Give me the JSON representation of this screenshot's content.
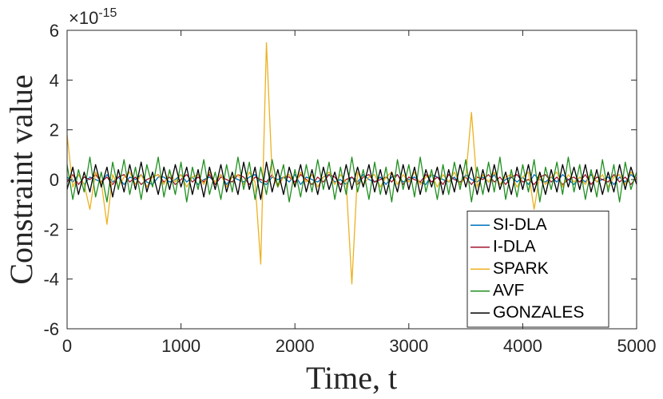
{
  "chart_data": {
    "type": "line",
    "y_multiplier": {
      "base": "×10",
      "exponent": "-15"
    },
    "xlabel": "Time, t",
    "ylabel": "Constraint value",
    "xlim": [
      0,
      5000
    ],
    "ylim": [
      -6,
      6
    ],
    "xticks": [
      0,
      1000,
      2000,
      3000,
      4000,
      5000
    ],
    "yticks": [
      -6,
      -4,
      -2,
      0,
      2,
      4,
      6
    ],
    "legend": "lower right",
    "x": [
      0,
      50,
      100,
      150,
      200,
      250,
      300,
      350,
      400,
      450,
      500,
      550,
      600,
      650,
      700,
      750,
      800,
      850,
      900,
      950,
      1000,
      1050,
      1100,
      1150,
      1200,
      1250,
      1300,
      1350,
      1400,
      1450,
      1500,
      1550,
      1600,
      1650,
      1700,
      1750,
      1800,
      1850,
      1900,
      1950,
      2000,
      2050,
      2100,
      2150,
      2200,
      2250,
      2300,
      2350,
      2400,
      2450,
      2500,
      2550,
      2600,
      2650,
      2700,
      2750,
      2800,
      2850,
      2900,
      2950,
      3000,
      3050,
      3100,
      3150,
      3200,
      3250,
      3300,
      3350,
      3400,
      3450,
      3500,
      3550,
      3600,
      3650,
      3700,
      3750,
      3800,
      3850,
      3900,
      3950,
      4000,
      4050,
      4100,
      4150,
      4200,
      4250,
      4300,
      4350,
      4400,
      4450,
      4500,
      4550,
      4600,
      4650,
      4700,
      4750,
      4800,
      4850,
      4900,
      4950,
      5000
    ],
    "series": [
      {
        "name": "SI-DLA",
        "color": "#0072bd",
        "values": [
          0.1,
          -0.1,
          0.2,
          -0.2,
          0.1,
          0,
          -0.1,
          0.2,
          -0.1,
          0.1,
          -0.2,
          0.1,
          0,
          0.2,
          -0.1,
          -0.2,
          0.1,
          0.1,
          -0.1,
          0,
          0.2,
          -0.1,
          0.1,
          -0.2,
          0,
          0.1,
          -0.1,
          0.2,
          -0.2,
          0.1,
          0,
          -0.1,
          0.1,
          0.2,
          -0.1,
          -0.2,
          0.1,
          0,
          0.1,
          -0.1,
          0.2,
          -0.2,
          0.1,
          0,
          -0.1,
          0.1,
          0.2,
          -0.1,
          0,
          -0.2,
          0.1,
          -0.1,
          0.2,
          0,
          -0.1,
          0.1,
          -0.2,
          0.1,
          0.2,
          -0.1,
          0,
          0.1,
          -0.1,
          -0.2,
          0.2,
          0.1,
          0,
          -0.1,
          0.1,
          -0.2,
          0.2,
          0,
          -0.1,
          0.1,
          -0.1,
          0.2,
          -0.2,
          0,
          0.1,
          -0.1,
          0.1,
          -0.2,
          0.2,
          0,
          -0.1,
          0.1,
          -0.1,
          0.2,
          0,
          -0.2,
          0.1,
          -0.1,
          0.2,
          -0.1,
          0,
          0.1,
          -0.2,
          0.1,
          -0.1,
          0.2,
          0
        ]
      },
      {
        "name": "I-DLA",
        "color": "#a2142f",
        "values": [
          -0.1,
          0.2,
          -0.2,
          0.1,
          0,
          0.2,
          -0.1,
          0.1,
          -0.2,
          0.1,
          0.2,
          -0.1,
          0.1,
          -0.2,
          0,
          0.1,
          0.2,
          -0.1,
          0.1,
          -0.2,
          0,
          0.2,
          -0.1,
          0.1,
          -0.1,
          0.2,
          -0.2,
          0.1,
          0,
          -0.1,
          0.2,
          0.1,
          -0.2,
          0.1,
          0,
          -0.1,
          0.2,
          -0.2,
          0.1,
          0.1,
          -0.1,
          0.2,
          0,
          -0.2,
          0.1,
          -0.1,
          0.2,
          0.1,
          -0.2,
          0,
          0.1,
          -0.2,
          0.1,
          0.2,
          -0.1,
          0,
          0.1,
          -0.1,
          0.2,
          -0.2,
          0.1,
          0,
          -0.1,
          0.2,
          -0.1,
          0.1,
          -0.2,
          0.2,
          0,
          -0.1,
          0.1,
          -0.2,
          0.1,
          0,
          0.2,
          -0.1,
          0.1,
          -0.2,
          0.1,
          0.2,
          -0.1,
          0,
          -0.2,
          0.1,
          0.2,
          -0.1,
          0.1,
          -0.2,
          0,
          0.1,
          -0.1,
          0.2,
          -0.2,
          0.1,
          0,
          -0.1,
          0.2,
          -0.1,
          0.1,
          -0.2,
          0.1
        ]
      },
      {
        "name": "SPARK",
        "color": "#edb120",
        "values": [
          1.8,
          -0.3,
          0.2,
          -0.2,
          -1.2,
          0.3,
          -0.1,
          -1.8,
          0.2,
          -0.3,
          0.1,
          0.3,
          -0.2,
          0.2,
          -0.3,
          0.1,
          0.2,
          -0.2,
          0.3,
          -0.1,
          0.2,
          -0.3,
          0.1,
          0.2,
          -0.2,
          0.3,
          -0.1,
          0.2,
          -0.3,
          0.1,
          0.2,
          -0.2,
          0.3,
          -0.1,
          -3.4,
          5.5,
          0.2,
          -0.3,
          0.1,
          0.2,
          -0.2,
          0.3,
          -0.1,
          0.2,
          -0.3,
          0.1,
          0.3,
          -0.2,
          0.2,
          -0.1,
          -4.2,
          0.3,
          -0.2,
          0.1,
          0.2,
          -0.3,
          0.1,
          0.3,
          -0.2,
          0.2,
          -0.1,
          0.3,
          -0.2,
          0.1,
          0.2,
          -0.3,
          0.2,
          -0.1,
          0.3,
          -0.2,
          0.1,
          2.7,
          -0.3,
          0.2,
          -0.1,
          0.3,
          -0.2,
          0.1,
          0.2,
          -0.3,
          0.1,
          0.3,
          -1.2,
          0.2,
          -0.2,
          0.1,
          0.3,
          -0.3,
          0.2,
          -0.1,
          0.1,
          -0.2,
          0.3,
          -0.1,
          0.2,
          -0.3,
          0.1,
          0.2,
          -0.2,
          0.3,
          0
        ]
      },
      {
        "name": "AVF",
        "color": "#1f8f1f",
        "values": [
          0.6,
          -0.8,
          0.4,
          -0.5,
          0.9,
          -0.7,
          0.3,
          -0.9,
          0.7,
          -0.4,
          0.8,
          -0.6,
          0.5,
          -0.8,
          0.6,
          -0.3,
          0.9,
          -0.7,
          0.4,
          -0.6,
          0.7,
          -0.9,
          0.5,
          -0.4,
          0.8,
          -0.6,
          0.3,
          -0.8,
          0.6,
          -0.5,
          0.9,
          -0.4,
          0.7,
          -0.8,
          0.5,
          -0.6,
          0.8,
          -0.3,
          0.6,
          -0.9,
          0.4,
          -0.7,
          0.6,
          -0.5,
          0.8,
          -0.4,
          0.7,
          -0.8,
          0.5,
          -0.6,
          0.9,
          -0.5,
          0.4,
          -0.8,
          0.7,
          -0.6,
          0.5,
          -0.9,
          0.8,
          -0.4,
          0.6,
          -0.7,
          0.9,
          -0.5,
          0.4,
          -0.8,
          0.6,
          -0.6,
          0.7,
          -0.4,
          0.8,
          -0.9,
          0.5,
          -0.6,
          0.7,
          -0.5,
          0.9,
          -0.8,
          0.4,
          -0.7,
          0.6,
          -0.5,
          0.8,
          -0.9,
          0.5,
          -0.4,
          0.7,
          -0.6,
          0.9,
          -0.5,
          0.6,
          -0.8,
          0.4,
          -0.7,
          0.8,
          -0.5,
          0.6,
          -0.9,
          0.7,
          -0.4,
          0.3
        ]
      },
      {
        "name": "GONZALES",
        "color": "#000000",
        "values": [
          -0.4,
          0.5,
          -0.6,
          0.3,
          -0.5,
          0.6,
          -0.3,
          0.5,
          -0.7,
          0.4,
          -0.5,
          0.6,
          -0.4,
          0.7,
          -0.5,
          0.3,
          -0.6,
          0.5,
          -0.4,
          0.6,
          -0.3,
          0.5,
          -0.6,
          0.4,
          -0.7,
          0.5,
          -0.4,
          0.6,
          -0.5,
          0.3,
          -0.6,
          0.7,
          -0.4,
          0.5,
          -0.8,
          0.7,
          -0.5,
          0.4,
          -0.6,
          0.5,
          -0.3,
          0.6,
          -0.5,
          0.4,
          -0.6,
          0.5,
          -0.4,
          0.3,
          -0.5,
          0.6,
          -0.4,
          0.5,
          -0.3,
          0.6,
          -0.5,
          0.4,
          -0.6,
          0.3,
          -0.5,
          0.6,
          -0.4,
          0.5,
          -0.6,
          0.4,
          -0.3,
          0.5,
          -0.6,
          0.4,
          -0.5,
          0.6,
          -0.3,
          0.5,
          -0.6,
          0.4,
          -0.5,
          0.6,
          -0.4,
          0.3,
          -0.6,
          0.5,
          -0.4,
          0.6,
          -0.5,
          0.3,
          -0.6,
          0.4,
          -0.5,
          0.6,
          -0.3,
          0.5,
          -0.4,
          0.6,
          -0.5,
          0.4,
          -0.6,
          0.3,
          -0.5,
          0.6,
          -0.4,
          0.5,
          -0.2
        ]
      }
    ]
  }
}
